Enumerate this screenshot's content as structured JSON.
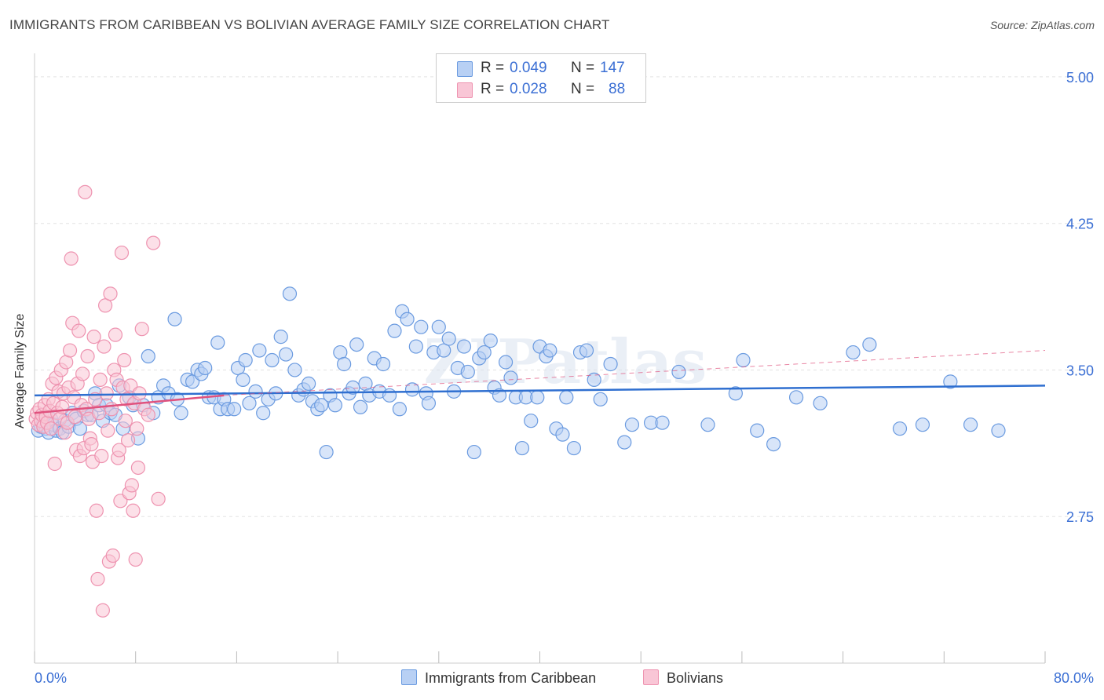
{
  "title": "IMMIGRANTS FROM CARIBBEAN VS BOLIVIAN AVERAGE FAMILY SIZE CORRELATION CHART",
  "source": "Source: ZipAtlas.com",
  "watermark": "ZIPatlas",
  "legend_top": {
    "rows": [
      {
        "r_label": "R =",
        "r_value": "0.049",
        "n_label": "N =",
        "n_value": "147"
      },
      {
        "r_label": "R =",
        "r_value": "0.028",
        "n_label": "N =",
        "n_value": "88"
      }
    ]
  },
  "legend_bottom": {
    "series1": "Immigrants from Caribbean",
    "series2": "Bolivians"
  },
  "colors": {
    "blue_fill": "#b8d0f4",
    "blue_stroke": "#6b9be0",
    "blue_line": "#2f6fd0",
    "pink_fill": "#f9c6d6",
    "pink_stroke": "#ee93b0",
    "pink_line": "#e0527e",
    "axis_text": "#3b6fd4",
    "grid": "#e3e3e3"
  },
  "chart_data": {
    "type": "scatter",
    "title": "IMMIGRANTS FROM CARIBBEAN VS BOLIVIAN AVERAGE FAMILY SIZE CORRELATION CHART",
    "xlabel": "",
    "ylabel": "Average Family Size",
    "xlim": [
      0,
      80
    ],
    "ylim": [
      2.0,
      5.08
    ],
    "x_tick_labels": [
      "0.0%",
      "80.0%"
    ],
    "y_ticks": [
      2.75,
      3.5,
      4.25,
      5.0
    ],
    "y_tick_labels": [
      "2.75",
      "3.50",
      "4.25",
      "5.00"
    ],
    "grid": "horizontal dashed",
    "legend_position": "top-center and bottom",
    "series": [
      {
        "name": "Immigrants from Caribbean",
        "R": 0.049,
        "N": 147,
        "trend": {
          "x0": 0,
          "y0": 3.37,
          "x1": 80,
          "y1": 3.42
        },
        "points": [
          [
            0.3,
            3.19
          ],
          [
            0.5,
            3.21
          ],
          [
            0.7,
            3.23
          ],
          [
            0.9,
            3.2
          ],
          [
            1.1,
            3.18
          ],
          [
            1.3,
            3.25
          ],
          [
            1.5,
            3.22
          ],
          [
            1.7,
            3.19
          ],
          [
            2.0,
            3.2
          ],
          [
            2.2,
            3.18
          ],
          [
            2.4,
            3.24
          ],
          [
            2.7,
            3.21
          ],
          [
            3.0,
            3.28
          ],
          [
            3.3,
            3.25
          ],
          [
            3.6,
            3.2
          ],
          [
            3.9,
            3.29
          ],
          [
            4.2,
            3.27
          ],
          [
            4.5,
            3.27
          ],
          [
            4.8,
            3.38
          ],
          [
            5.1,
            3.32
          ],
          [
            5.4,
            3.24
          ],
          [
            5.7,
            3.32
          ],
          [
            6.0,
            3.28
          ],
          [
            6.4,
            3.27
          ],
          [
            6.7,
            3.42
          ],
          [
            7.0,
            3.2
          ],
          [
            7.5,
            3.36
          ],
          [
            7.8,
            3.32
          ],
          [
            8.2,
            3.15
          ],
          [
            8.6,
            3.32
          ],
          [
            9.0,
            3.57
          ],
          [
            9.4,
            3.28
          ],
          [
            9.8,
            3.36
          ],
          [
            10.2,
            3.42
          ],
          [
            10.6,
            3.38
          ],
          [
            11.1,
            3.76
          ],
          [
            11.3,
            3.35
          ],
          [
            11.6,
            3.28
          ],
          [
            12.1,
            3.45
          ],
          [
            12.5,
            3.44
          ],
          [
            12.9,
            3.5
          ],
          [
            13.2,
            3.48
          ],
          [
            13.5,
            3.51
          ],
          [
            13.8,
            3.36
          ],
          [
            14.2,
            3.36
          ],
          [
            14.5,
            3.64
          ],
          [
            14.7,
            3.3
          ],
          [
            15.0,
            3.35
          ],
          [
            15.3,
            3.3
          ],
          [
            15.8,
            3.3
          ],
          [
            16.1,
            3.51
          ],
          [
            16.5,
            3.45
          ],
          [
            16.7,
            3.55
          ],
          [
            17.0,
            3.33
          ],
          [
            17.5,
            3.39
          ],
          [
            17.8,
            3.6
          ],
          [
            18.1,
            3.28
          ],
          [
            18.5,
            3.35
          ],
          [
            18.8,
            3.55
          ],
          [
            19.1,
            3.38
          ],
          [
            19.5,
            3.67
          ],
          [
            19.9,
            3.58
          ],
          [
            20.2,
            3.89
          ],
          [
            20.6,
            3.5
          ],
          [
            20.9,
            3.37
          ],
          [
            21.3,
            3.4
          ],
          [
            21.7,
            3.43
          ],
          [
            22.0,
            3.34
          ],
          [
            22.4,
            3.3
          ],
          [
            22.7,
            3.32
          ],
          [
            23.1,
            3.08
          ],
          [
            23.4,
            3.37
          ],
          [
            23.8,
            3.32
          ],
          [
            24.2,
            3.59
          ],
          [
            24.5,
            3.53
          ],
          [
            24.9,
            3.38
          ],
          [
            25.2,
            3.41
          ],
          [
            25.5,
            3.63
          ],
          [
            25.8,
            3.31
          ],
          [
            26.2,
            3.43
          ],
          [
            26.5,
            3.37
          ],
          [
            26.9,
            3.56
          ],
          [
            27.3,
            3.39
          ],
          [
            27.6,
            3.53
          ],
          [
            28.1,
            3.37
          ],
          [
            28.5,
            3.7
          ],
          [
            28.9,
            3.3
          ],
          [
            29.1,
            3.8
          ],
          [
            29.5,
            3.76
          ],
          [
            29.9,
            3.4
          ],
          [
            30.2,
            3.62
          ],
          [
            30.6,
            3.72
          ],
          [
            31.0,
            3.38
          ],
          [
            31.2,
            3.33
          ],
          [
            31.6,
            3.59
          ],
          [
            32.0,
            3.72
          ],
          [
            32.4,
            3.6
          ],
          [
            32.8,
            3.66
          ],
          [
            33.2,
            3.39
          ],
          [
            33.5,
            3.51
          ],
          [
            34.0,
            3.62
          ],
          [
            34.3,
            3.49
          ],
          [
            34.8,
            3.08
          ],
          [
            35.2,
            3.56
          ],
          [
            35.6,
            3.59
          ],
          [
            36.1,
            3.65
          ],
          [
            36.4,
            3.41
          ],
          [
            36.8,
            3.37
          ],
          [
            37.3,
            3.54
          ],
          [
            37.7,
            3.46
          ],
          [
            38.1,
            3.36
          ],
          [
            38.6,
            3.1
          ],
          [
            38.9,
            3.36
          ],
          [
            39.3,
            3.24
          ],
          [
            39.8,
            3.36
          ],
          [
            40.0,
            3.62
          ],
          [
            40.5,
            3.57
          ],
          [
            40.8,
            3.6
          ],
          [
            41.3,
            3.2
          ],
          [
            41.8,
            3.17
          ],
          [
            42.1,
            3.36
          ],
          [
            42.7,
            3.1
          ],
          [
            43.2,
            3.59
          ],
          [
            43.7,
            3.6
          ],
          [
            44.3,
            3.45
          ],
          [
            44.8,
            3.35
          ],
          [
            45.6,
            3.53
          ],
          [
            46.7,
            3.13
          ],
          [
            47.3,
            3.22
          ],
          [
            48.8,
            3.23
          ],
          [
            49.7,
            3.23
          ],
          [
            51.0,
            3.49
          ],
          [
            53.3,
            3.22
          ],
          [
            55.5,
            3.38
          ],
          [
            56.1,
            3.55
          ],
          [
            57.2,
            3.19
          ],
          [
            58.5,
            3.12
          ],
          [
            60.3,
            3.36
          ],
          [
            62.2,
            3.33
          ],
          [
            64.8,
            3.59
          ],
          [
            66.1,
            3.63
          ],
          [
            68.5,
            3.2
          ],
          [
            70.3,
            3.22
          ],
          [
            72.5,
            3.44
          ],
          [
            74.1,
            3.22
          ],
          [
            76.3,
            3.19
          ]
        ]
      },
      {
        "name": "Bolivians",
        "R": 0.028,
        "N": 88,
        "trend": {
          "x0": 0,
          "y0": 3.28,
          "x1": 15,
          "y1": 3.37
        },
        "trend_dashed": {
          "x0": 15,
          "y0": 3.37,
          "x1": 80,
          "y1": 3.6
        },
        "points": [
          [
            0.1,
            3.25
          ],
          [
            0.2,
            3.28
          ],
          [
            0.3,
            3.22
          ],
          [
            0.4,
            3.3
          ],
          [
            0.5,
            3.24
          ],
          [
            0.6,
            3.27
          ],
          [
            0.7,
            3.21
          ],
          [
            0.8,
            3.32
          ],
          [
            0.9,
            3.26
          ],
          [
            1.0,
            3.23
          ],
          [
            1.1,
            3.35
          ],
          [
            1.2,
            3.29
          ],
          [
            1.3,
            3.2
          ],
          [
            1.4,
            3.43
          ],
          [
            1.5,
            3.33
          ],
          [
            1.6,
            3.02
          ],
          [
            1.7,
            3.46
          ],
          [
            1.8,
            3.28
          ],
          [
            1.9,
            3.39
          ],
          [
            2.0,
            3.25
          ],
          [
            2.1,
            3.5
          ],
          [
            2.2,
            3.31
          ],
          [
            2.3,
            3.38
          ],
          [
            2.4,
            3.18
          ],
          [
            2.5,
            3.54
          ],
          [
            2.6,
            3.23
          ],
          [
            2.7,
            3.41
          ],
          [
            2.8,
            3.6
          ],
          [
            2.9,
            4.07
          ],
          [
            3.0,
            3.74
          ],
          [
            3.1,
            3.36
          ],
          [
            3.2,
            3.26
          ],
          [
            3.3,
            3.09
          ],
          [
            3.4,
            3.43
          ],
          [
            3.5,
            3.7
          ],
          [
            3.6,
            3.06
          ],
          [
            3.7,
            3.32
          ],
          [
            3.8,
            3.48
          ],
          [
            3.9,
            3.1
          ],
          [
            4.0,
            4.41
          ],
          [
            4.1,
            3.3
          ],
          [
            4.2,
            3.57
          ],
          [
            4.3,
            3.25
          ],
          [
            4.4,
            3.15
          ],
          [
            4.5,
            3.12
          ],
          [
            4.6,
            3.03
          ],
          [
            4.7,
            3.67
          ],
          [
            4.8,
            3.35
          ],
          [
            4.9,
            2.78
          ],
          [
            5.0,
            2.43
          ],
          [
            5.1,
            3.28
          ],
          [
            5.2,
            3.45
          ],
          [
            5.3,
            3.06
          ],
          [
            5.4,
            2.27
          ],
          [
            5.5,
            3.62
          ],
          [
            5.6,
            3.83
          ],
          [
            5.7,
            3.38
          ],
          [
            5.8,
            3.19
          ],
          [
            5.9,
            2.52
          ],
          [
            6.0,
            3.89
          ],
          [
            6.1,
            3.3
          ],
          [
            6.2,
            2.55
          ],
          [
            6.3,
            3.5
          ],
          [
            6.4,
            3.68
          ],
          [
            6.5,
            3.45
          ],
          [
            6.6,
            3.05
          ],
          [
            6.7,
            3.09
          ],
          [
            6.8,
            2.83
          ],
          [
            6.9,
            4.1
          ],
          [
            7.0,
            3.41
          ],
          [
            7.1,
            3.55
          ],
          [
            7.2,
            3.24
          ],
          [
            7.3,
            3.35
          ],
          [
            7.4,
            3.14
          ],
          [
            7.5,
            2.87
          ],
          [
            7.6,
            3.42
          ],
          [
            7.7,
            2.91
          ],
          [
            7.8,
            2.78
          ],
          [
            7.9,
            3.33
          ],
          [
            8.0,
            2.53
          ],
          [
            8.1,
            3.2
          ],
          [
            8.2,
            3.0
          ],
          [
            8.3,
            3.38
          ],
          [
            8.5,
            3.71
          ],
          [
            8.7,
            3.3
          ],
          [
            9.0,
            3.27
          ],
          [
            9.4,
            4.15
          ],
          [
            9.8,
            2.84
          ]
        ]
      }
    ]
  }
}
